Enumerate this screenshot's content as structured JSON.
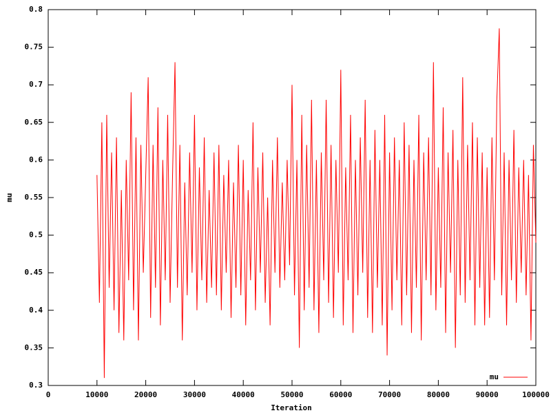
{
  "chart_data": {
    "type": "line",
    "xlabel": "Iteration",
    "ylabel": "mu",
    "xlim": [
      0,
      100000
    ],
    "ylim": [
      0.3,
      0.8
    ],
    "xticks": [
      0,
      10000,
      20000,
      30000,
      40000,
      50000,
      60000,
      70000,
      80000,
      90000,
      100000
    ],
    "yticks": [
      0.3,
      0.35,
      0.4,
      0.45,
      0.5,
      0.55,
      0.6,
      0.65,
      0.7,
      0.75,
      0.8
    ],
    "legend": "bottom right",
    "x": [
      10000,
      10500,
      11000,
      11500,
      12000,
      12500,
      13000,
      13500,
      14000,
      14500,
      15000,
      15500,
      16000,
      16500,
      17000,
      17500,
      18000,
      18500,
      19000,
      19500,
      20000,
      20500,
      21000,
      21500,
      22000,
      22500,
      23000,
      23500,
      24000,
      24500,
      25000,
      25500,
      26000,
      26500,
      27000,
      27500,
      28000,
      28500,
      29000,
      29500,
      30000,
      30500,
      31000,
      31500,
      32000,
      32500,
      33000,
      33500,
      34000,
      34500,
      35000,
      35500,
      36000,
      36500,
      37000,
      37500,
      38000,
      38500,
      39000,
      39500,
      40000,
      40500,
      41000,
      41500,
      42000,
      42500,
      43000,
      43500,
      44000,
      44500,
      45000,
      45500,
      46000,
      46500,
      47000,
      47500,
      48000,
      48500,
      49000,
      49500,
      50000,
      50500,
      51000,
      51500,
      52000,
      52500,
      53000,
      53500,
      54000,
      54500,
      55000,
      55500,
      56000,
      56500,
      57000,
      57500,
      58000,
      58500,
      59000,
      59500,
      60000,
      60500,
      61000,
      61500,
      62000,
      62500,
      63000,
      63500,
      64000,
      64500,
      65000,
      65500,
      66000,
      66500,
      67000,
      67500,
      68000,
      68500,
      69000,
      69500,
      70000,
      70500,
      71000,
      71500,
      72000,
      72500,
      73000,
      73500,
      74000,
      74500,
      75000,
      75500,
      76000,
      76500,
      77000,
      77500,
      78000,
      78500,
      79000,
      79500,
      80000,
      80500,
      81000,
      81500,
      82000,
      82500,
      83000,
      83500,
      84000,
      84500,
      85000,
      85500,
      86000,
      86500,
      87000,
      87500,
      88000,
      88500,
      89000,
      89500,
      90000,
      90500,
      91000,
      91500,
      92000,
      92500,
      93000,
      93500,
      94000,
      94500,
      95000,
      95500,
      96000,
      96500,
      97000,
      97500,
      98000,
      98500,
      99000,
      99500,
      100000
    ],
    "series": [
      {
        "name": "mu",
        "color": "#ff0000",
        "values": [
          0.58,
          0.41,
          0.65,
          0.31,
          0.66,
          0.43,
          0.61,
          0.4,
          0.63,
          0.37,
          0.56,
          0.36,
          0.6,
          0.44,
          0.69,
          0.4,
          0.63,
          0.36,
          0.62,
          0.45,
          0.58,
          0.71,
          0.39,
          0.62,
          0.43,
          0.67,
          0.38,
          0.6,
          0.44,
          0.66,
          0.41,
          0.58,
          0.73,
          0.43,
          0.62,
          0.36,
          0.57,
          0.42,
          0.61,
          0.45,
          0.66,
          0.4,
          0.59,
          0.44,
          0.63,
          0.41,
          0.56,
          0.43,
          0.61,
          0.42,
          0.62,
          0.4,
          0.58,
          0.45,
          0.6,
          0.39,
          0.57,
          0.43,
          0.62,
          0.42,
          0.6,
          0.38,
          0.56,
          0.44,
          0.65,
          0.4,
          0.59,
          0.45,
          0.61,
          0.41,
          0.55,
          0.38,
          0.6,
          0.45,
          0.63,
          0.43,
          0.57,
          0.44,
          0.6,
          0.46,
          0.7,
          0.42,
          0.6,
          0.35,
          0.66,
          0.4,
          0.62,
          0.43,
          0.68,
          0.4,
          0.6,
          0.37,
          0.61,
          0.44,
          0.68,
          0.41,
          0.62,
          0.39,
          0.6,
          0.45,
          0.72,
          0.38,
          0.59,
          0.44,
          0.66,
          0.37,
          0.6,
          0.42,
          0.63,
          0.45,
          0.68,
          0.39,
          0.6,
          0.37,
          0.64,
          0.43,
          0.6,
          0.38,
          0.66,
          0.34,
          0.61,
          0.4,
          0.63,
          0.44,
          0.6,
          0.38,
          0.65,
          0.42,
          0.62,
          0.37,
          0.6,
          0.43,
          0.66,
          0.36,
          0.61,
          0.44,
          0.63,
          0.42,
          0.73,
          0.4,
          0.59,
          0.43,
          0.67,
          0.37,
          0.61,
          0.45,
          0.64,
          0.35,
          0.6,
          0.42,
          0.71,
          0.41,
          0.62,
          0.44,
          0.65,
          0.38,
          0.63,
          0.43,
          0.61,
          0.38,
          0.59,
          0.39,
          0.63,
          0.44,
          0.68,
          0.775,
          0.42,
          0.61,
          0.38,
          0.6,
          0.44,
          0.64,
          0.41,
          0.59,
          0.45,
          0.6,
          0.42,
          0.58,
          0.36,
          0.62,
          0.49
        ]
      }
    ]
  }
}
